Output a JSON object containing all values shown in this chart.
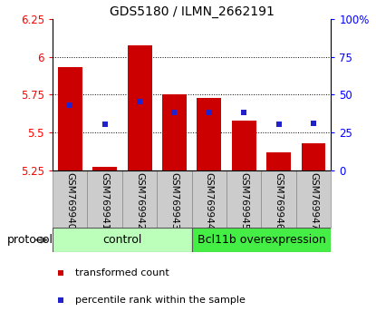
{
  "title": "GDS5180 / ILMN_2662191",
  "samples": [
    "GSM769940",
    "GSM769941",
    "GSM769942",
    "GSM769943",
    "GSM769944",
    "GSM769945",
    "GSM769946",
    "GSM769947"
  ],
  "red_values": [
    5.93,
    5.27,
    6.08,
    5.75,
    5.73,
    5.58,
    5.37,
    5.43
  ],
  "blue_values": [
    5.68,
    5.555,
    5.705,
    5.635,
    5.635,
    5.635,
    5.555,
    5.56
  ],
  "ymin": 5.25,
  "ymax": 6.25,
  "yticks": [
    5.25,
    5.5,
    5.75,
    6.0,
    6.25
  ],
  "ytick_labels": [
    "5.25",
    "5.5",
    "5.75",
    "6",
    "6.25"
  ],
  "right_ytick_pcts": [
    0,
    25,
    50,
    75,
    100
  ],
  "right_ytick_labels": [
    "0",
    "25",
    "50",
    "75",
    "100%"
  ],
  "bar_color": "#cc0000",
  "blue_color": "#2222cc",
  "bar_width": 0.7,
  "groups": [
    {
      "label": "control",
      "indices": [
        0,
        1,
        2,
        3
      ],
      "color": "#bbffbb"
    },
    {
      "label": "Bcl11b overexpression",
      "indices": [
        4,
        5,
        6,
        7
      ],
      "color": "#44ee44"
    }
  ],
  "protocol_label": "protocol",
  "title_fontsize": 10,
  "tick_fontsize": 8.5,
  "label_fontsize": 8,
  "sample_fontsize": 7.5,
  "group_fontsize": 9
}
